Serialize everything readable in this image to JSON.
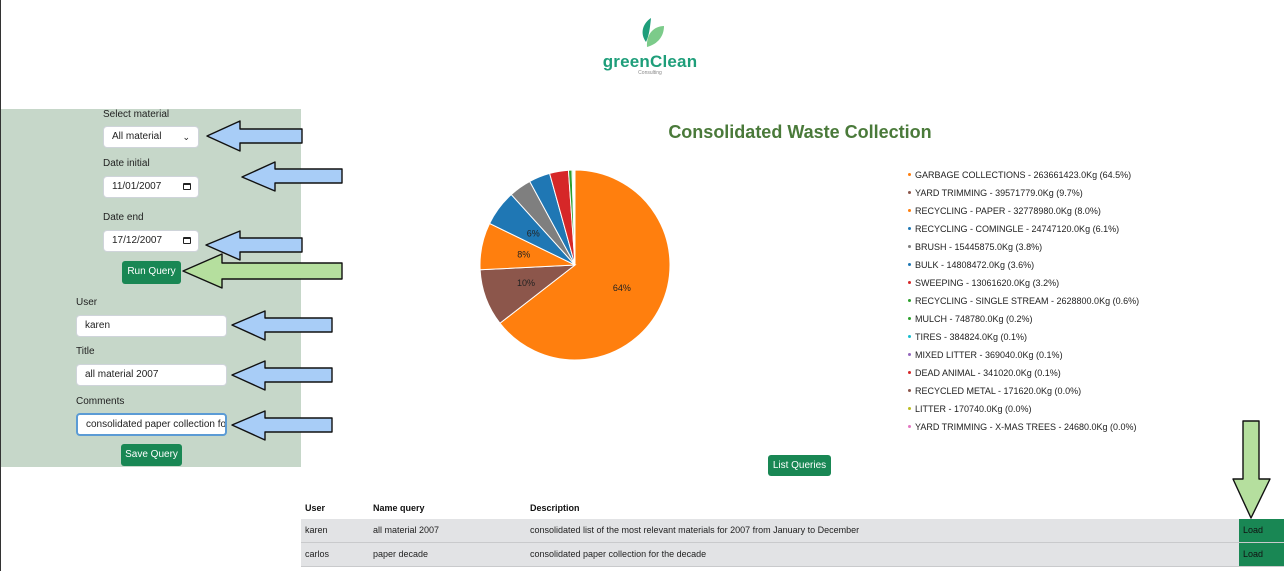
{
  "logo": {
    "name": "greenClean",
    "subtitle": "Consulting",
    "colors": {
      "leaf_dark": "#1e9e7a",
      "leaf_light": "#7ccb8a"
    }
  },
  "form": {
    "material_label": "Select material",
    "material_value": "All material",
    "date_initial_label": "Date initial",
    "date_initial_value": "11/01/2007",
    "date_end_label": "Date end",
    "date_end_value": "17/12/2007",
    "run_query_label": "Run Query",
    "user_label": "User",
    "user_value": "karen",
    "title_label": "Title",
    "title_value": "all material 2007",
    "comments_label": "Comments",
    "comments_value": "consolidated paper collection for",
    "save_query_label": "Save Query"
  },
  "chart_data": {
    "type": "pie",
    "title": "Consolidated Waste Collection",
    "slices": [
      {
        "label": "GARBAGE COLLECTIONS - 263661423.0Kg (64.5%)",
        "value": 64.5,
        "color": "#ff7f0e",
        "data_label": "64%"
      },
      {
        "label": "YARD TRIMMING - 39571779.0Kg (9.7%)",
        "value": 9.7,
        "color": "#8c564b",
        "data_label": "10%"
      },
      {
        "label": "RECYCLING - PAPER - 32778980.0Kg (8.0%)",
        "value": 8.0,
        "color": "#ff7f0e",
        "data_label": "8%"
      },
      {
        "label": "RECYCLING - COMINGLE - 24747120.0Kg (6.1%)",
        "value": 6.1,
        "color": "#1f77b4",
        "data_label": "6%"
      },
      {
        "label": "BRUSH - 15445875.0Kg (3.8%)",
        "value": 3.8,
        "color": "#7f7f7f",
        "data_label": ""
      },
      {
        "label": "BULK - 14808472.0Kg (3.6%)",
        "value": 3.6,
        "color": "#1f77b4",
        "data_label": ""
      },
      {
        "label": "SWEEPING - 13061620.0Kg (3.2%)",
        "value": 3.2,
        "color": "#d62728",
        "data_label": ""
      },
      {
        "label": "RECYCLING - SINGLE STREAM - 2628800.0Kg (0.6%)",
        "value": 0.6,
        "color": "#2ca02c",
        "data_label": ""
      },
      {
        "label": "MULCH - 748780.0Kg (0.2%)",
        "value": 0.2,
        "color": "#2ca02c",
        "data_label": ""
      },
      {
        "label": "TIRES - 384824.0Kg (0.1%)",
        "value": 0.1,
        "color": "#17becf",
        "data_label": ""
      },
      {
        "label": "MIXED LITTER - 369040.0Kg (0.1%)",
        "value": 0.1,
        "color": "#9467bd",
        "data_label": ""
      },
      {
        "label": "DEAD ANIMAL - 341020.0Kg (0.1%)",
        "value": 0.1,
        "color": "#d62728",
        "data_label": ""
      },
      {
        "label": "RECYCLED METAL - 171620.0Kg (0.0%)",
        "value": 0.0,
        "color": "#8c564b",
        "data_label": ""
      },
      {
        "label": "LITTER - 170740.0Kg (0.0%)",
        "value": 0.0,
        "color": "#bcbd22",
        "data_label": ""
      },
      {
        "label": "YARD TRIMMING - X-MAS TREES - 24680.0Kg (0.0%)",
        "value": 0.0,
        "color": "#e377c2",
        "data_label": ""
      }
    ]
  },
  "list_queries_label": "List Queries",
  "table": {
    "headers": {
      "user": "User",
      "name": "Name query",
      "description": "Description"
    },
    "rows": [
      {
        "user": "karen",
        "name": "all material 2007",
        "description": "consolidated list of the most relevant materials for 2007 from January to December",
        "action": "Load"
      },
      {
        "user": "carlos",
        "name": "paper decade",
        "description": "consolidated paper collection for the decade",
        "action": "Load"
      }
    ]
  },
  "annotation_colors": {
    "blue_arrow": "#a8cdf7",
    "green_arrow": "#b5df9e"
  }
}
